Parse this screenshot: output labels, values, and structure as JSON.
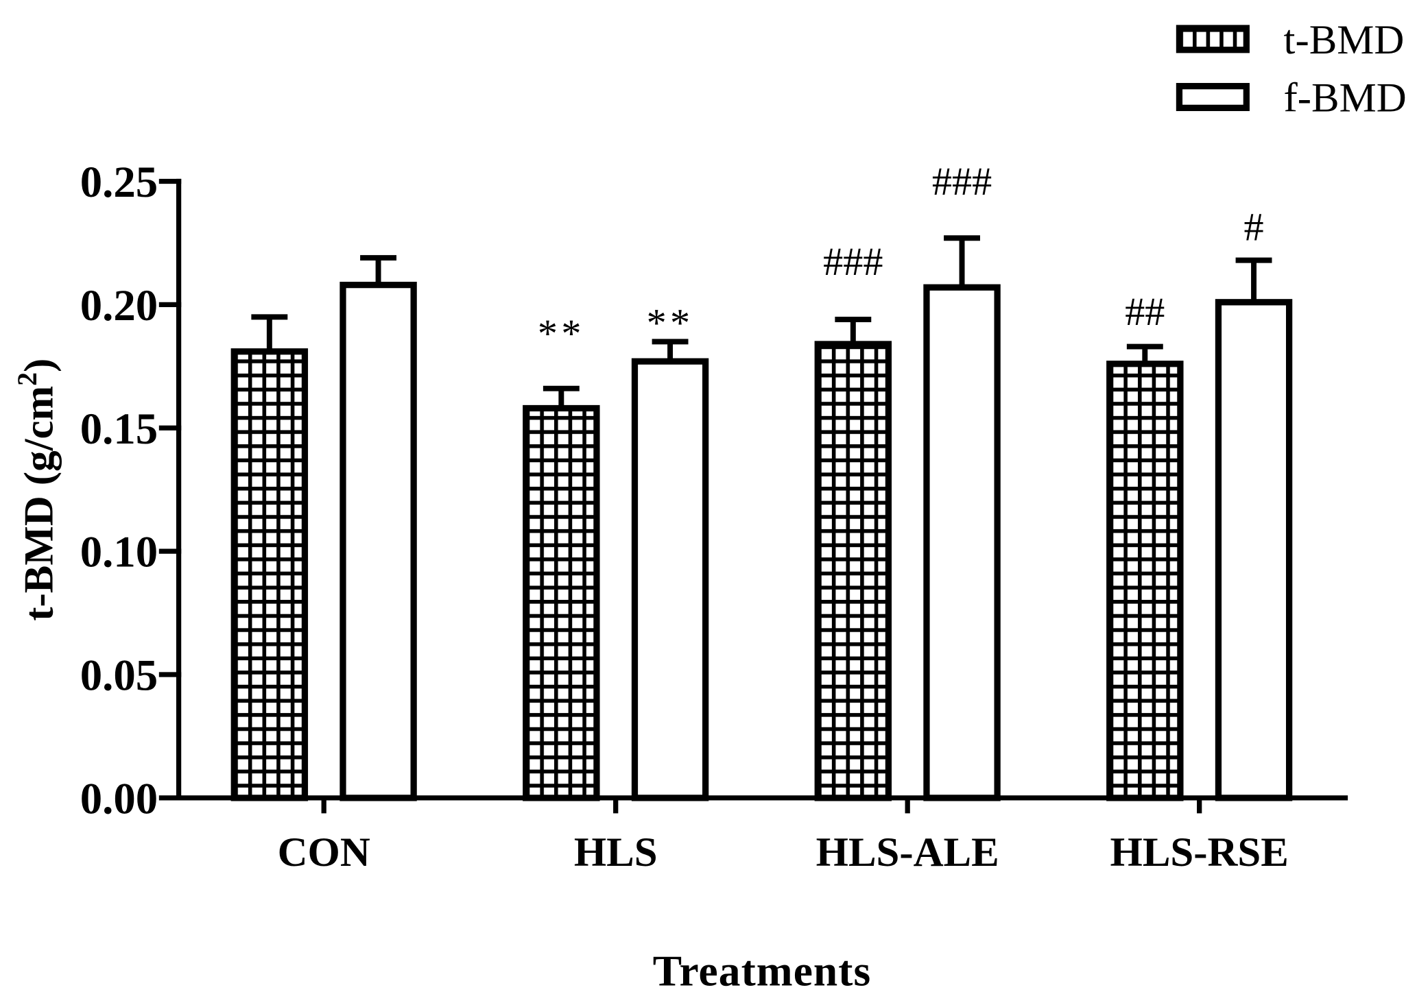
{
  "chart_data": {
    "type": "bar",
    "title": "",
    "xlabel": "Treatments",
    "ylabel": {
      "text": "t-BMD (g/cm",
      "superscript": "2",
      "suffix": ")"
    },
    "ylim": [
      0,
      0.25
    ],
    "yticks": [
      "0.00",
      "0.05",
      "0.10",
      "0.15",
      "0.20",
      "0.25"
    ],
    "categories": [
      "CON",
      "HLS",
      "HLS-ALE",
      "HLS-RSE"
    ],
    "series": [
      {
        "name": "t-BMD",
        "values": [
          0.181,
          0.158,
          0.184,
          0.176
        ],
        "errors": [
          0.014,
          0.008,
          0.01,
          0.007
        ],
        "annotations": [
          null,
          "**",
          "###",
          "##"
        ]
      },
      {
        "name": "f-BMD",
        "values": [
          0.208,
          0.177,
          0.207,
          0.201
        ],
        "errors": [
          0.011,
          0.008,
          0.02,
          0.017
        ],
        "annotations": [
          null,
          "**",
          "###",
          "#"
        ]
      }
    ],
    "legend": {
      "position": "top-right"
    },
    "grid": false
  },
  "colors": {
    "ink": "#000000",
    "background": "#ffffff"
  }
}
